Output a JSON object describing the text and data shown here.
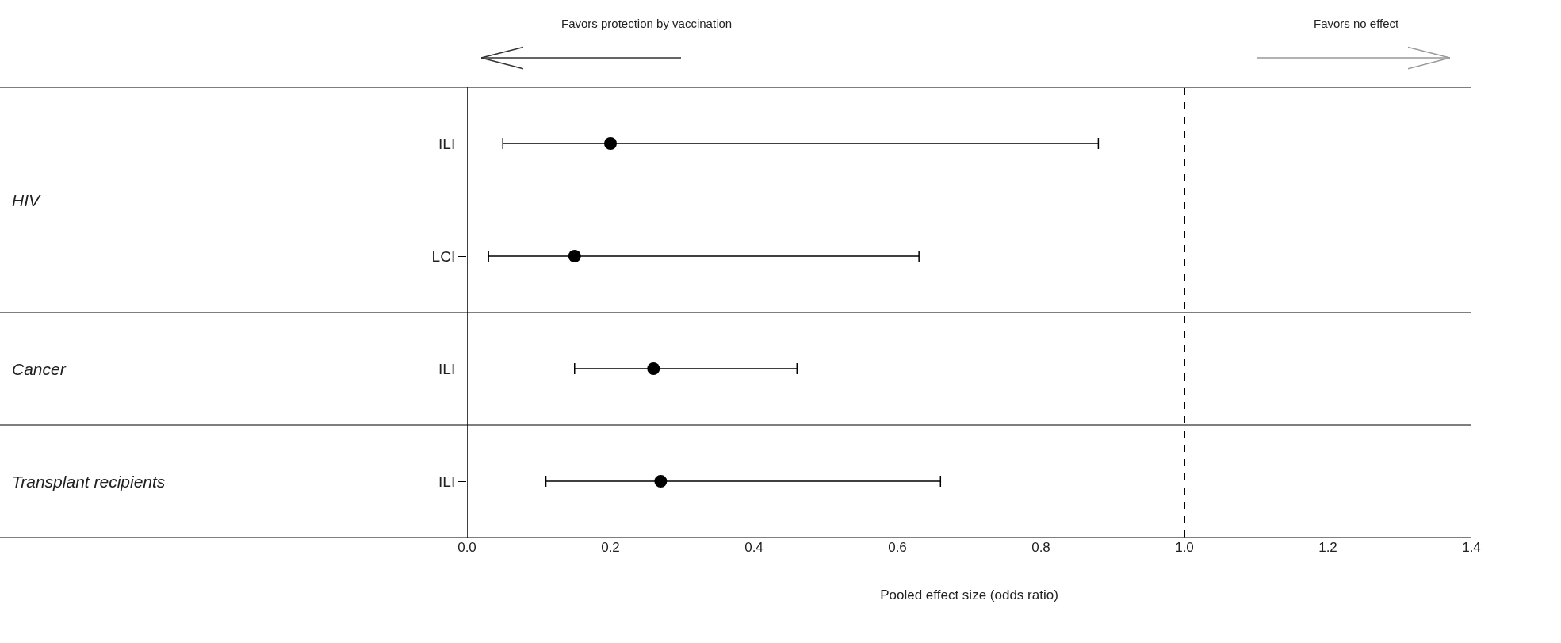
{
  "chart_data": {
    "type": "scatter",
    "orientation": "horizontal",
    "xlabel": "Pooled effect size (odds ratio)",
    "categories": [
      "ILI",
      "LCI",
      "ILI",
      "ILI"
    ],
    "color": "#000000",
    "values": [
      0.2,
      0.15,
      0.26,
      0.27
    ],
    "errors": [
      [
        0.05,
        0.88
      ],
      [
        0.03,
        0.63
      ],
      [
        0.15,
        0.46
      ],
      [
        0.11,
        0.66
      ]
    ],
    "xlim": [
      0,
      1.4
    ],
    "xticks": [
      {
        "value": 0,
        "label": "0.0"
      },
      {
        "value": 0.2,
        "label": "0.2"
      },
      {
        "value": 0.4,
        "label": "0.4"
      },
      {
        "value": 0.6,
        "label": "0.6"
      },
      {
        "value": 0.8,
        "label": "0.8"
      },
      {
        "value": 1.0,
        "label": "1.0"
      },
      {
        "value": 1.2,
        "label": "1.2"
      },
      {
        "value": 1.4,
        "label": "1.4"
      }
    ],
    "ref_lines": [
      {
        "axis": "x",
        "value": 1.0,
        "color": "#000000",
        "line_style": "dashed"
      }
    ],
    "annotations": [
      "Favors protection by vaccination",
      "Favors no effect",
      "HIV",
      "Cancer",
      "Transplant recipients"
    ],
    "marker": "circle"
  }
}
